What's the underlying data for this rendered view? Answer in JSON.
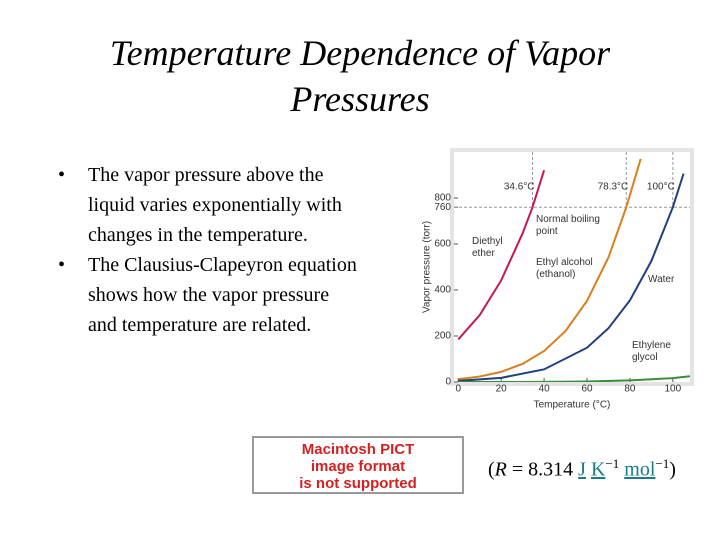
{
  "title_lines": [
    "Temperature Dependence of Vapor",
    "Pressures"
  ],
  "bullets": [
    "The vapor pressure above the liquid varies exponentially with changes in the temperature.",
    "The Clausius-Clapeyron equation shows how the vapor pressure and temperature are related."
  ],
  "placeholder": [
    "Macintosh PICT",
    "image format",
    "is not supported"
  ],
  "formula": {
    "open": "(",
    "symbol": "R",
    "rhs": " = 8.314 ",
    "units": [
      {
        "text": "J"
      },
      {
        "text": "K",
        "exp": "−1"
      },
      {
        "text": "mol",
        "exp": "−1"
      }
    ],
    "close": ")"
  },
  "chart_data": {
    "type": "line",
    "y_label": "Vapor pressure (torr)",
    "x_label": "Temperature (°C)",
    "xlim": [
      -2,
      108
    ],
    "xticks": [
      0,
      20,
      40,
      60,
      80,
      100
    ],
    "ylim": [
      0,
      1000
    ],
    "yticks": [
      0,
      200,
      400,
      600,
      760,
      800
    ],
    "reference_line": {
      "value": 760,
      "label": "Normal boiling point"
    },
    "boiling_points": [
      {
        "value": 34.6,
        "label": "34.6°C"
      },
      {
        "value": 78.3,
        "label": "78.3°C"
      },
      {
        "value": 100,
        "label": "100°C"
      }
    ],
    "series": [
      {
        "name": "Diethyl ether",
        "color": "#c2185b",
        "x": [
          0,
          10,
          20,
          30,
          34.6,
          40
        ],
        "values": [
          185,
          291,
          442,
          647,
          760,
          921
        ]
      },
      {
        "name": "Ethyl alcohol (ethanol)",
        "color": "#d9801c",
        "x": [
          0,
          10,
          20,
          30,
          40,
          50,
          60,
          70,
          78.3,
          80,
          85
        ],
        "values": [
          12,
          24,
          44,
          79,
          135,
          222,
          353,
          542,
          760,
          813,
          970
        ]
      },
      {
        "name": "Water",
        "color": "#1f3f7f",
        "x": [
          0,
          20,
          40,
          60,
          70,
          80,
          90,
          100,
          105
        ],
        "values": [
          5,
          18,
          55,
          149,
          234,
          355,
          526,
          760,
          906
        ]
      },
      {
        "name": "Ethylene glycol",
        "color": "#3b8c3b",
        "x": [
          0,
          20,
          40,
          60,
          80,
          100,
          108
        ],
        "values": [
          0,
          0.1,
          0.4,
          2,
          7,
          17,
          25
        ]
      }
    ]
  }
}
